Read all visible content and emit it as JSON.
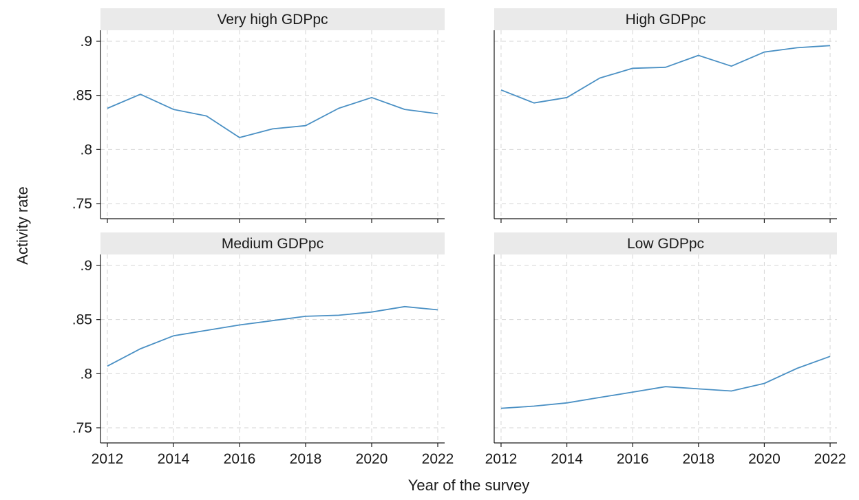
{
  "chart_data": {
    "type": "line",
    "layout": "facet-2x2",
    "xlabel": "Year of the survey",
    "ylabel": "Activity rate",
    "xlim": [
      2012,
      2022
    ],
    "ylim": [
      0.75,
      0.9
    ],
    "xticks": [
      2012,
      2014,
      2016,
      2018,
      2020,
      2022
    ],
    "yticks": [
      0.75,
      0.8,
      0.85,
      0.9
    ],
    "ytick_labels": [
      ".75",
      ".8",
      ".85",
      ".9"
    ],
    "grid": true,
    "line_color": "#4a90c4",
    "x": [
      2012,
      2013,
      2014,
      2015,
      2016,
      2017,
      2018,
      2019,
      2020,
      2021,
      2022
    ],
    "panels": [
      {
        "title": "Very high GDPpc",
        "values": [
          0.838,
          0.851,
          0.837,
          0.831,
          0.811,
          0.819,
          0.822,
          0.838,
          0.848,
          0.837,
          0.833
        ]
      },
      {
        "title": "High GDPpc",
        "values": [
          0.855,
          0.843,
          0.848,
          0.866,
          0.875,
          0.876,
          0.887,
          0.877,
          0.89,
          0.894,
          0.896
        ]
      },
      {
        "title": "Medium GDPpc",
        "values": [
          0.807,
          0.823,
          0.835,
          0.84,
          0.845,
          0.849,
          0.853,
          0.854,
          0.857,
          0.862,
          0.859
        ]
      },
      {
        "title": "Low GDPpc",
        "values": [
          0.768,
          0.77,
          0.773,
          0.778,
          0.783,
          0.788,
          0.786,
          0.784,
          0.791,
          0.805,
          0.816
        ]
      }
    ]
  }
}
